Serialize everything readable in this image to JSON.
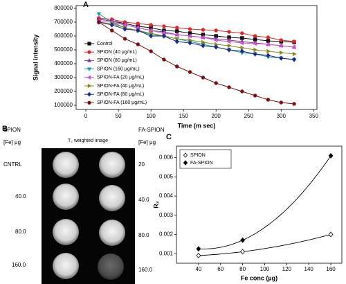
{
  "chart_data": [
    {
      "type": "line",
      "panel_label": "A",
      "xlabel": "Time (m sec)",
      "ylabel": "Signal intensity",
      "xlim": [
        -15,
        355
      ],
      "xticks": [
        0,
        50,
        100,
        150,
        200,
        250,
        300,
        350
      ],
      "ylim": [
        70000,
        820000
      ],
      "yticks": [
        100000,
        200000,
        300000,
        400000,
        500000,
        600000,
        700000,
        800000
      ],
      "legend": "lower left",
      "x": [
        20,
        40,
        60,
        80,
        100,
        120,
        140,
        160,
        180,
        200,
        220,
        240,
        260,
        280,
        300,
        320
      ],
      "series": [
        {
          "name": "Control",
          "color": "#111111",
          "marker": "square",
          "values": [
            720000,
            710000,
            690000,
            670000,
            660000,
            640000,
            635000,
            620000,
            610000,
            600000,
            590000,
            585000,
            575000,
            565000,
            560000,
            555000
          ]
        },
        {
          "name": "SPION (40 μg/mL)",
          "color": "#e0262b",
          "marker": "circle",
          "values": [
            730000,
            720000,
            700000,
            690000,
            680000,
            670000,
            660000,
            650000,
            645000,
            640000,
            630000,
            620000,
            600000,
            590000,
            570000,
            560000
          ]
        },
        {
          "name": "SPION (80 μg/mL)",
          "color": "#7a3fa0",
          "marker": "triangle-up",
          "values": [
            720000,
            710000,
            680000,
            660000,
            640000,
            630000,
            610000,
            600000,
            590000,
            580000,
            570000,
            560000,
            550000,
            540000,
            530000,
            520000
          ]
        },
        {
          "name": "SPION (160 μg/mL)",
          "color": "#1a9a9a",
          "marker": "triangle-down",
          "values": [
            760000,
            700000,
            660000,
            640000,
            610000,
            600000,
            580000,
            560000,
            540000,
            520000,
            500000,
            480000,
            470000,
            450000,
            440000,
            430000
          ]
        },
        {
          "name": "SPION-FA (20 μg/mL)",
          "color": "#d050d0",
          "marker": "triangle-left",
          "values": [
            710000,
            700000,
            680000,
            660000,
            640000,
            620000,
            610000,
            600000,
            590000,
            570000,
            560000,
            550000,
            545000,
            540000,
            530000,
            520000
          ]
        },
        {
          "name": "SPION-FA (40 μg/mL)",
          "color": "#8a8a20",
          "marker": "triangle-right",
          "values": [
            700000,
            690000,
            660000,
            640000,
            620000,
            600000,
            580000,
            570000,
            555000,
            540000,
            530000,
            515000,
            500000,
            490000,
            480000,
            470000
          ]
        },
        {
          "name": "SPION-FA (80 μg/mL)",
          "color": "#1c2a8a",
          "marker": "diamond",
          "values": [
            700000,
            680000,
            650000,
            640000,
            600000,
            600000,
            560000,
            550000,
            530000,
            520000,
            500000,
            490000,
            470000,
            460000,
            440000,
            430000
          ]
        },
        {
          "name": "SPION-FA (160 μg/mL)",
          "color": "#7a1010",
          "marker": "circle",
          "values": [
            700000,
            640000,
            580000,
            540000,
            490000,
            430000,
            380000,
            340000,
            300000,
            260000,
            230000,
            200000,
            170000,
            140000,
            120000,
            110000
          ]
        }
      ]
    },
    {
      "type": "scatter",
      "panel_label": "C",
      "xlabel": "Fe conc (µg)",
      "ylabel": "R₂",
      "xlim": [
        20,
        170
      ],
      "xticks": [
        40,
        60,
        80,
        100,
        120,
        140,
        160
      ],
      "ylim": [
        0.0005,
        0.0066
      ],
      "yticks": [
        0.001,
        0.002,
        0.003,
        0.004,
        0.005,
        0.006
      ],
      "legend": "upper left",
      "trendline": true,
      "x": [
        40,
        80,
        160
      ],
      "series": [
        {
          "name": "SPION",
          "color": "#000000",
          "marker": "diamond",
          "filled": false,
          "values": [
            0.0009,
            0.0011,
            0.002
          ]
        },
        {
          "name": "FA-SPION",
          "color": "#000000",
          "marker": "diamond",
          "filled": true,
          "values": [
            0.00125,
            0.0017,
            0.0061
          ]
        }
      ]
    }
  ],
  "panel_b": {
    "label": "B",
    "title": "T₂ weighted image",
    "left": {
      "heading": "SPION",
      "unit": "[Fe] μg",
      "rows": [
        "CNTRL",
        "40.0",
        "80.0",
        "160.0"
      ]
    },
    "right": {
      "heading": "FA-SPION",
      "unit": "[Fe] μg",
      "rows": [
        "20",
        "40.0",
        "80.0",
        "160.0"
      ]
    }
  }
}
